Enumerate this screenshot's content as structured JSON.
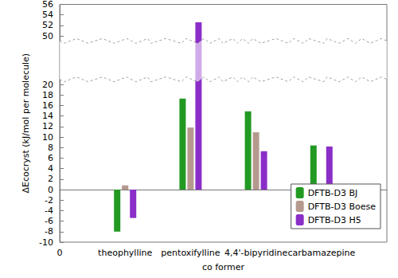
{
  "chart_data": {
    "type": "bar",
    "x_label": "co former",
    "y_label": "ΔEcocryst (kJ/mol per molecule)",
    "categories": [
      "0",
      "theophylline",
      "pentoxifylline",
      "4,4'-bipyridine",
      "carbamazepine",
      null
    ],
    "series": [
      {
        "name": "DFTB-D3 BJ",
        "color": "#229a22",
        "values": [
          null,
          -8.0,
          17.3,
          14.9,
          8.4,
          null
        ]
      },
      {
        "name": "DFTB-D3 Boese",
        "color": "#b5998f",
        "values": [
          null,
          0.8,
          11.8,
          10.9,
          0.2,
          null
        ]
      },
      {
        "name": "DFTB-D3 H5",
        "color": "#8b2ec8",
        "values": [
          null,
          -5.4,
          52.6,
          7.3,
          8.2,
          null
        ]
      }
    ],
    "ylim": [
      -10,
      56
    ],
    "yticks": [
      -10,
      -8,
      -6,
      -4,
      -2,
      0,
      2,
      4,
      6,
      8,
      10,
      12,
      14,
      16,
      18,
      20,
      50,
      52,
      54,
      56
    ],
    "grid": false,
    "legend": "lower right"
  }
}
